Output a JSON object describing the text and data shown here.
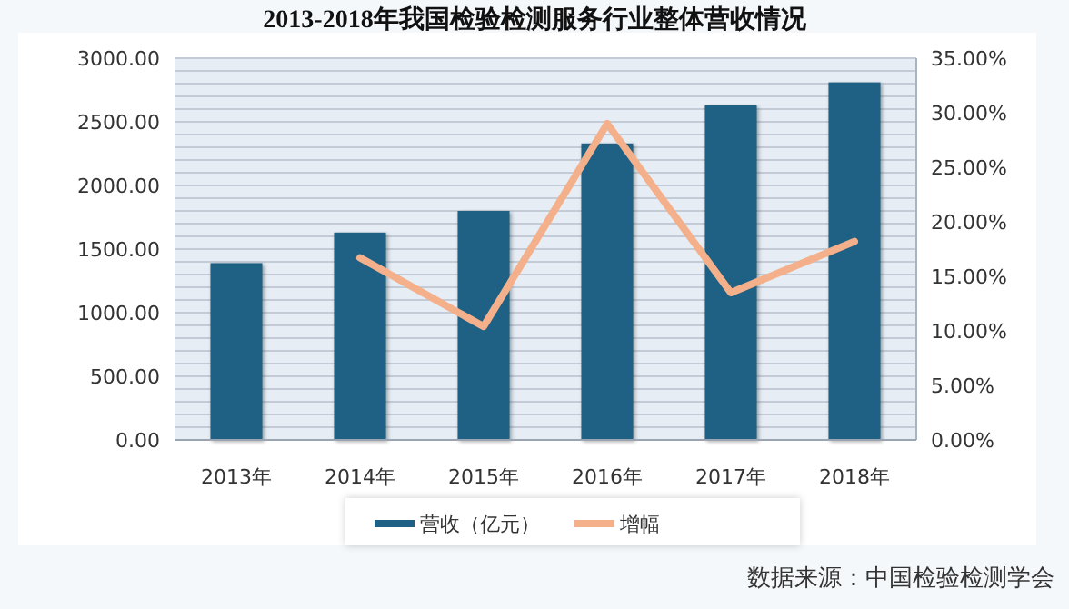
{
  "chart_data": {
    "type": "bar",
    "title": "2013-2018年我国检验检测服务行业整体营收情况",
    "categories": [
      "2013年",
      "2014年",
      "2015年",
      "2016年",
      "2017年",
      "2018年"
    ],
    "series": [
      {
        "name": "营收（亿元）",
        "color": "#1f6185",
        "values": [
          1390,
          1630,
          1800,
          2330,
          2630,
          2810
        ]
      },
      {
        "name": "增幅",
        "type": "line",
        "axis": "y2",
        "color": "#f4b08a",
        "values": [
          null,
          16.7,
          10.4,
          29.0,
          13.5,
          18.2
        ]
      }
    ],
    "ylim": [
      0,
      3000
    ],
    "yticks": [
      {
        "value": 0,
        "label": "0.00"
      },
      {
        "value": 100,
        "label": null
      },
      {
        "value": 200,
        "label": null
      },
      {
        "value": 300,
        "label": null
      },
      {
        "value": 400,
        "label": null
      },
      {
        "value": 500,
        "label": "500.00"
      },
      {
        "value": 600,
        "label": null
      },
      {
        "value": 700,
        "label": null
      },
      {
        "value": 800,
        "label": null
      },
      {
        "value": 900,
        "label": null
      },
      {
        "value": 1000,
        "label": "1000.00"
      },
      {
        "value": 1100,
        "label": null
      },
      {
        "value": 1200,
        "label": null
      },
      {
        "value": 1300,
        "label": null
      },
      {
        "value": 1400,
        "label": null
      },
      {
        "value": 1500,
        "label": "1500.00"
      },
      {
        "value": 1600,
        "label": null
      },
      {
        "value": 1700,
        "label": null
      },
      {
        "value": 1800,
        "label": null
      },
      {
        "value": 1900,
        "label": null
      },
      {
        "value": 2000,
        "label": "2000.00"
      },
      {
        "value": 2100,
        "label": null
      },
      {
        "value": 2200,
        "label": null
      },
      {
        "value": 2300,
        "label": null
      },
      {
        "value": 2400,
        "label": null
      },
      {
        "value": 2500,
        "label": "2500.00"
      },
      {
        "value": 2600,
        "label": null
      },
      {
        "value": 2700,
        "label": null
      },
      {
        "value": 2800,
        "label": null
      },
      {
        "value": 2900,
        "label": null
      },
      {
        "value": 3000,
        "label": "3000.00"
      }
    ],
    "y2lim": [
      0,
      35
    ],
    "y2ticks": [
      {
        "value": 0,
        "label": "0.00%"
      },
      {
        "value": 5,
        "label": "5.00%"
      },
      {
        "value": 10,
        "label": "10.00%"
      },
      {
        "value": 15,
        "label": "15.00%"
      },
      {
        "value": 20,
        "label": "20.00%"
      },
      {
        "value": 25,
        "label": "25.00%"
      },
      {
        "value": 30,
        "label": "30.00%"
      },
      {
        "value": 35,
        "label": "35.00%"
      }
    ],
    "grid": "y",
    "legend": "bottom",
    "annotations": [
      "数据来源：中国检验检测学会"
    ]
  }
}
